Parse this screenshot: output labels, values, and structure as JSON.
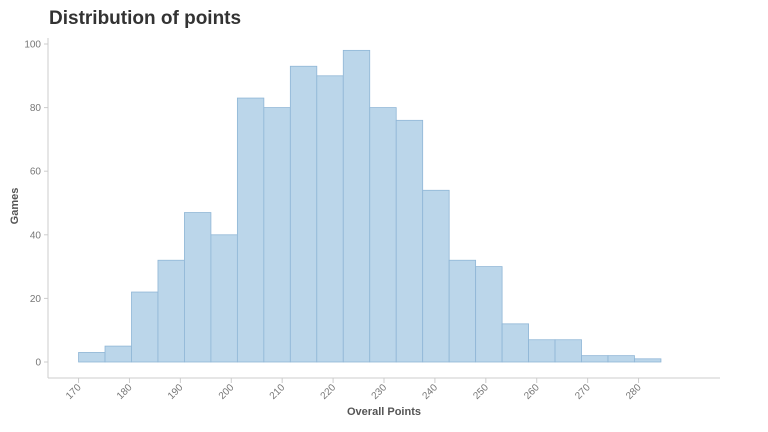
{
  "chart_data": {
    "type": "bar",
    "title": "Distribution of points",
    "xlabel": "Overall Points",
    "ylabel": "Games",
    "bar_color": "#bbd6ea",
    "bar_stroke": "#8fb6d6",
    "bins": [
      {
        "x0": 170,
        "x1": 175.2,
        "count": 3
      },
      {
        "x0": 175.2,
        "x1": 180.4,
        "count": 5
      },
      {
        "x0": 180.4,
        "x1": 185.6,
        "count": 22
      },
      {
        "x0": 185.6,
        "x1": 190.8,
        "count": 32
      },
      {
        "x0": 190.8,
        "x1": 196.0,
        "count": 47
      },
      {
        "x0": 196.0,
        "x1": 201.2,
        "count": 40
      },
      {
        "x0": 201.2,
        "x1": 206.4,
        "count": 83
      },
      {
        "x0": 206.4,
        "x1": 211.6,
        "count": 80
      },
      {
        "x0": 211.6,
        "x1": 216.8,
        "count": 93
      },
      {
        "x0": 216.8,
        "x1": 222.0,
        "count": 90
      },
      {
        "x0": 222.0,
        "x1": 227.2,
        "count": 98
      },
      {
        "x0": 227.2,
        "x1": 232.4,
        "count": 80
      },
      {
        "x0": 232.4,
        "x1": 237.6,
        "count": 76
      },
      {
        "x0": 237.6,
        "x1": 242.8,
        "count": 54
      },
      {
        "x0": 242.8,
        "x1": 248.0,
        "count": 32
      },
      {
        "x0": 248.0,
        "x1": 253.2,
        "count": 30
      },
      {
        "x0": 253.2,
        "x1": 258.4,
        "count": 12
      },
      {
        "x0": 258.4,
        "x1": 263.6,
        "count": 7
      },
      {
        "x0": 263.6,
        "x1": 268.8,
        "count": 7
      },
      {
        "x0": 268.8,
        "x1": 274.0,
        "count": 2
      },
      {
        "x0": 274.0,
        "x1": 279.2,
        "count": 2
      },
      {
        "x0": 279.2,
        "x1": 284.4,
        "count": 1
      }
    ],
    "x_ticks": [
      170,
      180,
      190,
      200,
      210,
      220,
      230,
      240,
      250,
      260,
      270,
      280
    ],
    "y_ticks": [
      0,
      20,
      40,
      60,
      80,
      100
    ],
    "xlim": [
      164,
      296
    ],
    "ylim": [
      0,
      100
    ],
    "grid": false,
    "legend": "none"
  }
}
